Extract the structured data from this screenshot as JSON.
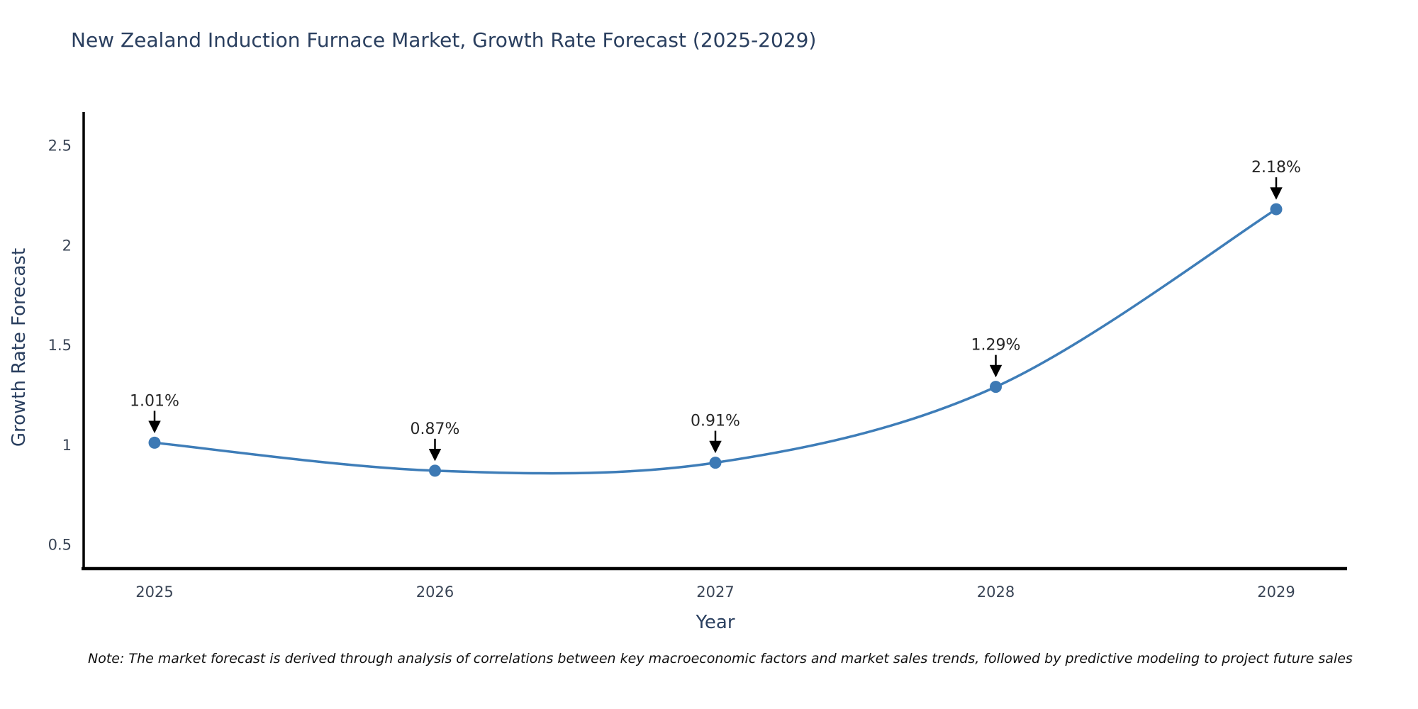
{
  "chart_data": {
    "type": "line",
    "title": "New Zealand Induction Furnace Market, Growth Rate Forecast (2025-2029)",
    "xlabel": "Year",
    "ylabel": "Growth Rate Forecast",
    "categories": [
      "2025",
      "2026",
      "2027",
      "2028",
      "2029"
    ],
    "x": [
      2025,
      2026,
      2027,
      2028,
      2029
    ],
    "series": [
      {
        "name": "Growth Rate Forecast",
        "values": [
          1.01,
          0.87,
          0.91,
          1.29,
          2.18
        ]
      }
    ],
    "point_labels": [
      "1.01%",
      "0.87%",
      "0.91%",
      "1.29%",
      "2.18%"
    ],
    "y_ticks": [
      0.5,
      1,
      1.5,
      2,
      2.5
    ],
    "y_tick_labels": [
      "0.5",
      "1",
      "1.5",
      "2",
      "2.5"
    ],
    "ylim": [
      0.38,
      2.66
    ],
    "line_shape": "spline",
    "grid": false,
    "legend": false,
    "annotation_style": "down-arrow-to-point"
  },
  "footnote": "Note: The market forecast is derived through analysis of correlations between key macroeconomic factors and market sales trends, followed by predictive modeling to project future sales",
  "styles": {
    "background": "#ffffff",
    "line_color": "#3e7db8",
    "marker_color": "#3d79b4",
    "axis_color": "#000000",
    "title_color": "#2a3f5f",
    "tick_color": "#3a4556",
    "annotation_text_color": "#262626",
    "annotation_arrow_color": "#000000"
  }
}
